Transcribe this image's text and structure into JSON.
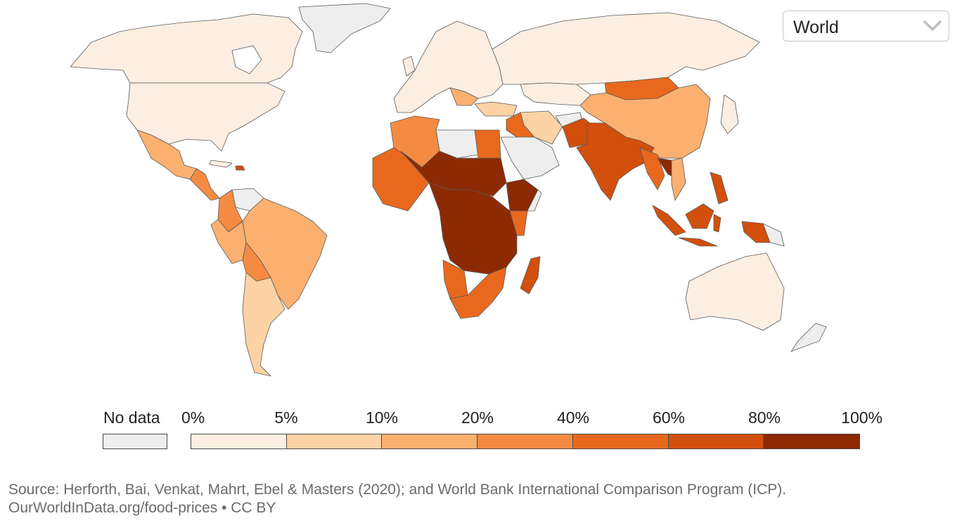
{
  "selector": {
    "value": "World",
    "icon": "chevron-down-icon"
  },
  "legend": {
    "no_data_label": "No data",
    "no_data_color": "#eeeeee",
    "ticks": [
      "0%",
      "5%",
      "10%",
      "20%",
      "40%",
      "60%",
      "80%",
      "100%"
    ],
    "colors": [
      "#fdeee2",
      "#fdd3a5",
      "#fbb070",
      "#f58b42",
      "#e8691e",
      "#d24f0c",
      "#8c2a04"
    ]
  },
  "footer": {
    "source": "Source: Herforth, Bai, Venkat, Mahrt, Ebel & Masters (2020); and World Bank International Comparison Program (ICP).",
    "link": "OurWorldInData.org/food-prices • CC BY"
  }
}
